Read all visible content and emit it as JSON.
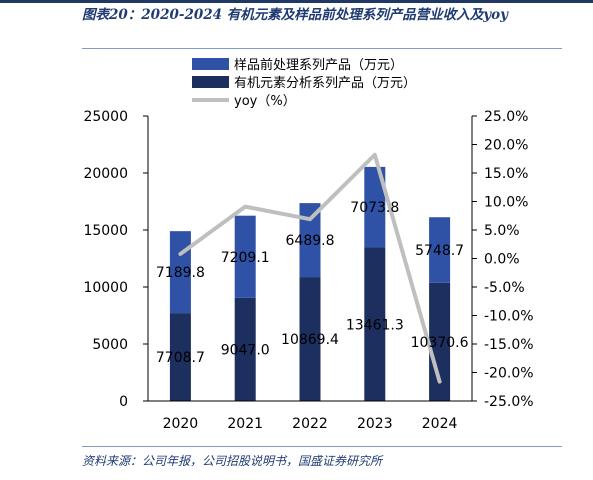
{
  "figure": {
    "title": "图表20：2020-2024 有机元素及样品前处理系列产品营业收入及yoy",
    "source": "资料来源：公司年报，公司招股说明书，国盛证券研究所"
  },
  "colors": {
    "accent": "#1f3b73",
    "bar_top": "#2f52a6",
    "bar_bottom": "#1c2f5f",
    "yoy_line": "#bfbfbf"
  },
  "chart_data": {
    "type": "bar",
    "stacked": true,
    "categories": [
      "2020",
      "2021",
      "2022",
      "2023",
      "2024"
    ],
    "series": [
      {
        "name": "有机元素分析系列产品（万元）",
        "values": [
          7708.7,
          9047.0,
          10869.4,
          13461.3,
          10370.6
        ],
        "color": "#1c2f5f",
        "labels": [
          "7708.7",
          "9047.0",
          "10869.4",
          "13461.3",
          "10370.6"
        ]
      },
      {
        "name": "样品前处理系列产品（万元）",
        "values": [
          7189.8,
          7209.1,
          6489.8,
          7073.8,
          5748.7
        ],
        "color": "#2f52a6",
        "labels": [
          "7189.8",
          "7209.1",
          "6489.8",
          "7073.8",
          "5748.7"
        ]
      },
      {
        "name": "yoy（%）",
        "type": "line",
        "axis": "right",
        "values": [
          0.8,
          9.1,
          6.9,
          18.2,
          -21.6
        ],
        "color": "#bfbfbf"
      }
    ],
    "ylim": [
      0,
      25000
    ],
    "yticks": [
      "0",
      "5000",
      "10000",
      "15000",
      "20000",
      "25000"
    ],
    "y2lim": [
      -25.0,
      25.0
    ],
    "y2ticks": [
      "-25.0%",
      "-20.0%",
      "-15.0%",
      "-10.0%",
      "-5.0%",
      "0.0%",
      "5.0%",
      "10.0%",
      "15.0%",
      "20.0%",
      "25.0%"
    ],
    "legend": [
      "样品前处理系列产品（万元）",
      "有机元素分析系列产品（万元）",
      "yoy（%）"
    ],
    "legend_position": "top",
    "grid": false
  }
}
